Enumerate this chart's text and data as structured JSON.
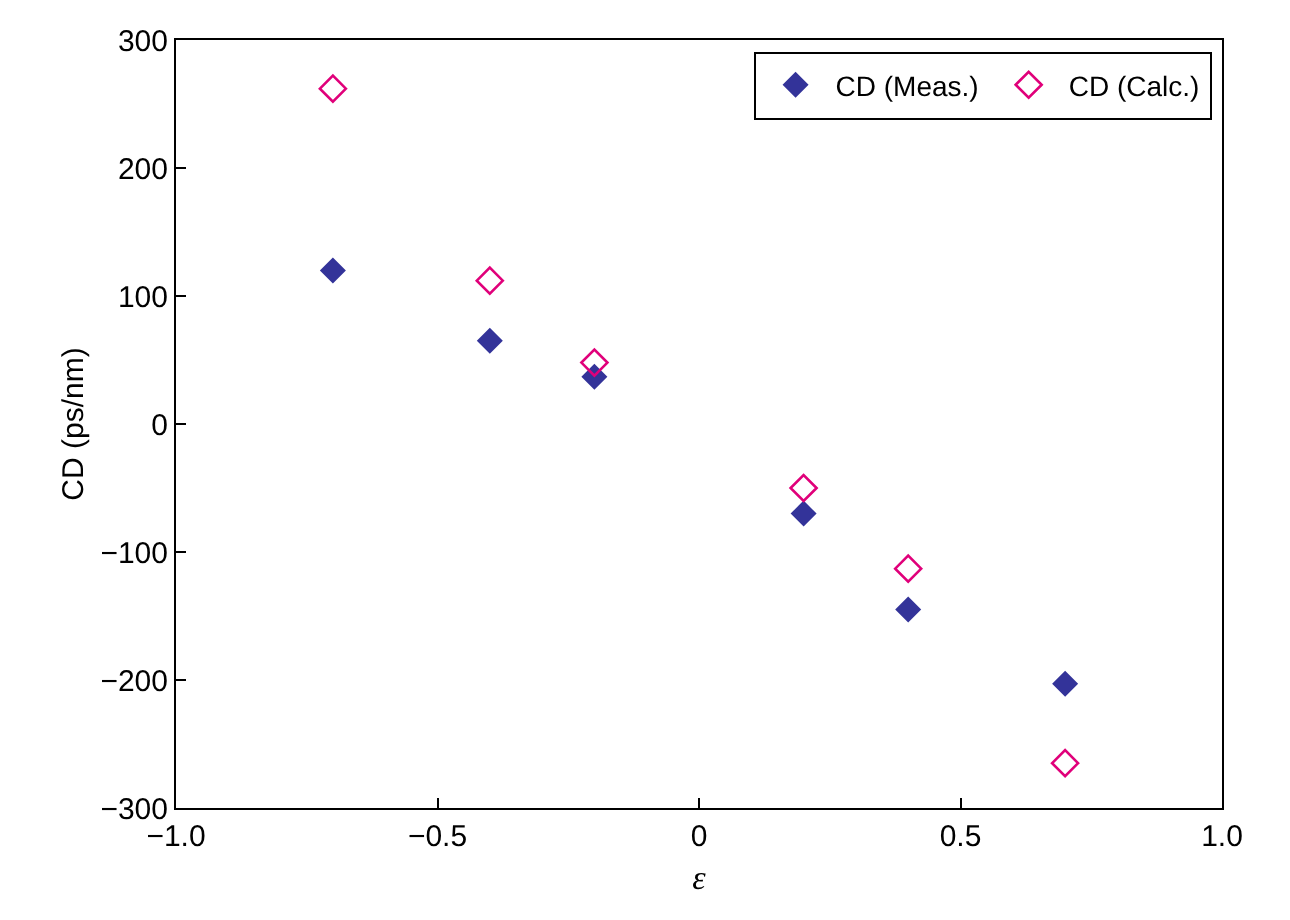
{
  "chart_data": {
    "type": "scatter",
    "xlabel": "ε",
    "ylabel": "CD (ps/nm)",
    "x": [
      -0.7,
      -0.4,
      -0.2,
      0.2,
      0.4,
      0.7
    ],
    "series": [
      {
        "name": "CD (Meas.)",
        "color": "#333399",
        "marker": "diamond",
        "values": [
          120,
          65,
          37,
          -70,
          -145,
          -203
        ]
      },
      {
        "name": "CD (Calc.)",
        "color": "#e0007a",
        "marker": "diamond-open",
        "values": [
          262,
          112,
          48,
          -50,
          -113,
          -265
        ]
      }
    ],
    "xlim": [
      -1.0,
      1.0
    ],
    "xticks": [
      {
        "value": -1.0,
        "label": "−1.0"
      },
      {
        "value": -0.5,
        "label": "−0.5"
      },
      0,
      {
        "value": 0.5,
        "label": "0.5"
      },
      {
        "value": 1.0,
        "label": "1.0"
      }
    ],
    "ylim": [
      -300,
      300
    ],
    "yticks": [
      {
        "value": -300,
        "label": "−300"
      },
      {
        "value": -200,
        "label": "−200"
      },
      {
        "value": -100,
        "label": "−100"
      },
      0,
      100,
      200,
      300
    ],
    "grid": false,
    "legend": "top right"
  }
}
